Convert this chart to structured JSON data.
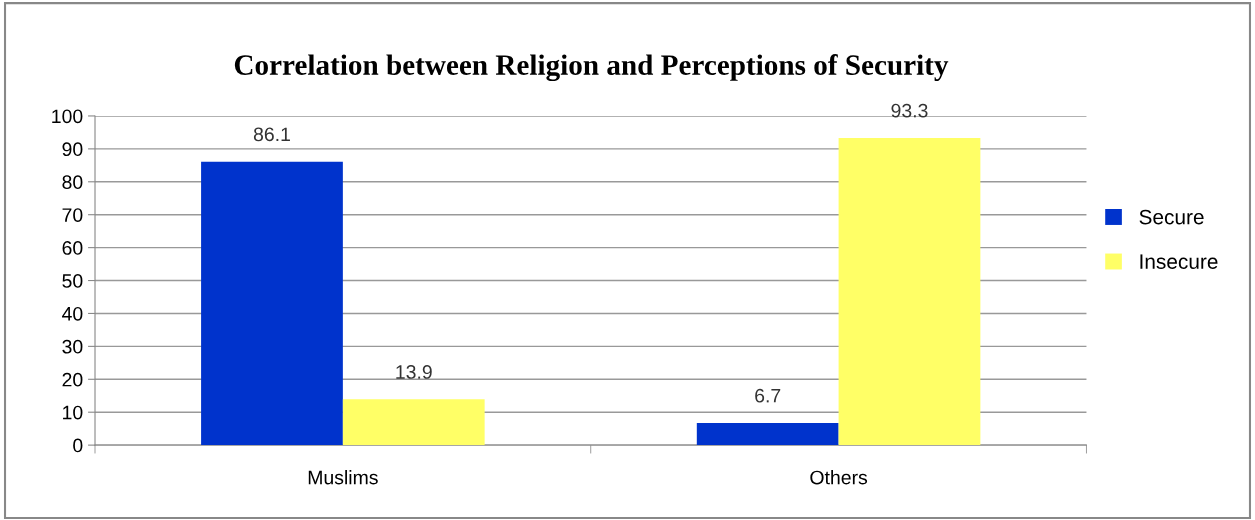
{
  "chart_data": {
    "type": "bar",
    "title": "Correlation between Religion and Perceptions of Security",
    "categories": [
      "Muslims",
      "Others"
    ],
    "series": [
      {
        "name": "Secure",
        "color": "#0033cc",
        "values": [
          86.1,
          6.7
        ]
      },
      {
        "name": "Insecure",
        "color": "#ffff66",
        "values": [
          13.9,
          93.3
        ]
      }
    ],
    "ylim": [
      0,
      100
    ],
    "yticks": [
      0,
      10,
      20,
      30,
      40,
      50,
      60,
      70,
      80,
      90,
      100
    ],
    "grid": "y",
    "legend": "right",
    "data_labels": true
  }
}
